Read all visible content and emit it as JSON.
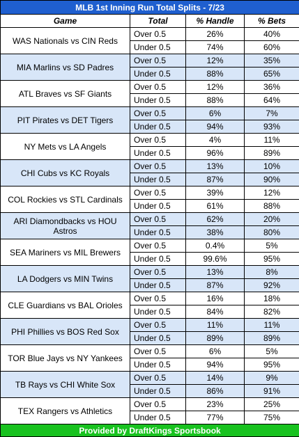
{
  "title": "MLB 1st Inning Run Total Splits - 7/23",
  "columns": [
    "Game",
    "Total",
    "% Handle",
    "% Bets"
  ],
  "games": [
    {
      "name": "WAS Nationals vs CIN Reds",
      "rows": [
        {
          "total": "Over 0.5",
          "handle": "26%",
          "bets": "40%"
        },
        {
          "total": "Under 0.5",
          "handle": "74%",
          "bets": "60%"
        }
      ]
    },
    {
      "name": "MIA Marlins vs SD Padres",
      "rows": [
        {
          "total": "Over 0.5",
          "handle": "12%",
          "bets": "35%"
        },
        {
          "total": "Under 0.5",
          "handle": "88%",
          "bets": "65%"
        }
      ]
    },
    {
      "name": "ATL Braves vs SF Giants",
      "rows": [
        {
          "total": "Over 0.5",
          "handle": "12%",
          "bets": "36%"
        },
        {
          "total": "Under 0.5",
          "handle": "88%",
          "bets": "64%"
        }
      ]
    },
    {
      "name": "PIT Pirates vs DET Tigers",
      "rows": [
        {
          "total": "Over 0.5",
          "handle": "6%",
          "bets": "7%"
        },
        {
          "total": "Under 0.5",
          "handle": "94%",
          "bets": "93%"
        }
      ]
    },
    {
      "name": "NY Mets vs LA Angels",
      "rows": [
        {
          "total": "Over 0.5",
          "handle": "4%",
          "bets": "11%"
        },
        {
          "total": "Under 0.5",
          "handle": "96%",
          "bets": "89%"
        }
      ]
    },
    {
      "name": "CHI Cubs vs KC Royals",
      "rows": [
        {
          "total": "Over 0.5",
          "handle": "13%",
          "bets": "10%"
        },
        {
          "total": "Under 0.5",
          "handle": "87%",
          "bets": "90%"
        }
      ]
    },
    {
      "name": "COL Rockies vs STL Cardinals",
      "rows": [
        {
          "total": "Over 0.5",
          "handle": "39%",
          "bets": "12%"
        },
        {
          "total": "Under 0.5",
          "handle": "61%",
          "bets": "88%"
        }
      ]
    },
    {
      "name": "ARI Diamondbacks vs HOU Astros",
      "rows": [
        {
          "total": "Over 0.5",
          "handle": "62%",
          "bets": "20%"
        },
        {
          "total": "Under 0.5",
          "handle": "38%",
          "bets": "80%"
        }
      ]
    },
    {
      "name": "SEA Mariners vs MIL Brewers",
      "rows": [
        {
          "total": "Over 0.5",
          "handle": "0.4%",
          "bets": "5%"
        },
        {
          "total": "Under 0.5",
          "handle": "99.6%",
          "bets": "95%"
        }
      ]
    },
    {
      "name": "LA Dodgers vs MIN Twins",
      "rows": [
        {
          "total": "Over 0.5",
          "handle": "13%",
          "bets": "8%"
        },
        {
          "total": "Under 0.5",
          "handle": "87%",
          "bets": "92%"
        }
      ]
    },
    {
      "name": "CLE Guardians vs BAL Orioles",
      "rows": [
        {
          "total": "Over 0.5",
          "handle": "16%",
          "bets": "18%"
        },
        {
          "total": "Under 0.5",
          "handle": "84%",
          "bets": "82%"
        }
      ]
    },
    {
      "name": "PHI Phillies vs BOS Red Sox",
      "rows": [
        {
          "total": "Over 0.5",
          "handle": "11%",
          "bets": "11%"
        },
        {
          "total": "Under 0.5",
          "handle": "89%",
          "bets": "89%"
        }
      ]
    },
    {
      "name": "TOR Blue Jays vs NY Yankees",
      "rows": [
        {
          "total": "Over 0.5",
          "handle": "6%",
          "bets": "5%"
        },
        {
          "total": "Under 0.5",
          "handle": "94%",
          "bets": "95%"
        }
      ]
    },
    {
      "name": "TB Rays vs CHI White Sox",
      "rows": [
        {
          "total": "Over 0.5",
          "handle": "14%",
          "bets": "9%"
        },
        {
          "total": "Under 0.5",
          "handle": "86%",
          "bets": "91%"
        }
      ]
    },
    {
      "name": "TEX Rangers vs Athletics",
      "rows": [
        {
          "total": "Over 0.5",
          "handle": "23%",
          "bets": "25%"
        },
        {
          "total": "Under 0.5",
          "handle": "77%",
          "bets": "75%"
        }
      ]
    }
  ],
  "footer": "Provided by DraftKings Sportsbook",
  "colors": {
    "title_bg": "#1f5fcf",
    "alt_row_bg": "#d8e6f8",
    "footer_bg": "#18c21f"
  }
}
